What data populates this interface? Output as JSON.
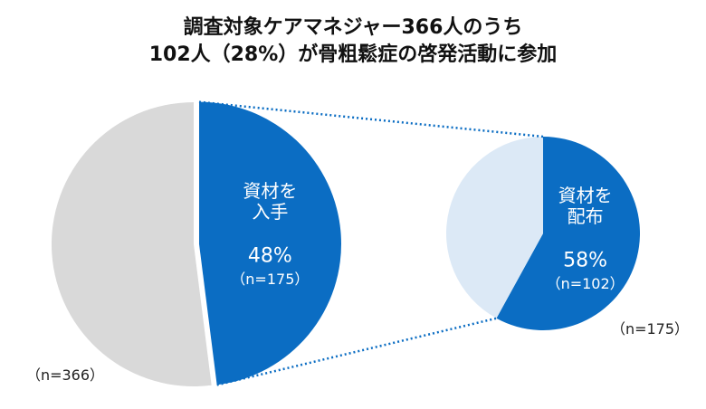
{
  "chart_data": {
    "type": "pie",
    "title": "調査対象ケアマネジャー366人のうち",
    "subtitle": "102人（28%）が骨粗鬆症の啓発活動に参加",
    "pies": [
      {
        "name_label": "（n=366）",
        "categories": [
          "資材を\n入手",
          null
        ],
        "values": [
          48,
          52
        ],
        "value_labels": [
          "48%",
          null
        ],
        "sub_labels": [
          "（n=175）",
          null
        ],
        "colors": [
          "#0b6dc3",
          "#d9d9d9"
        ]
      },
      {
        "name_label": "（n=175）",
        "categories": [
          "資材を\n配布",
          null
        ],
        "values": [
          58,
          42
        ],
        "value_labels": [
          "58%",
          null
        ],
        "sub_labels": [
          "（n=102）",
          null
        ],
        "colors": [
          "#0b6dc3",
          "#dce9f6"
        ]
      }
    ]
  }
}
